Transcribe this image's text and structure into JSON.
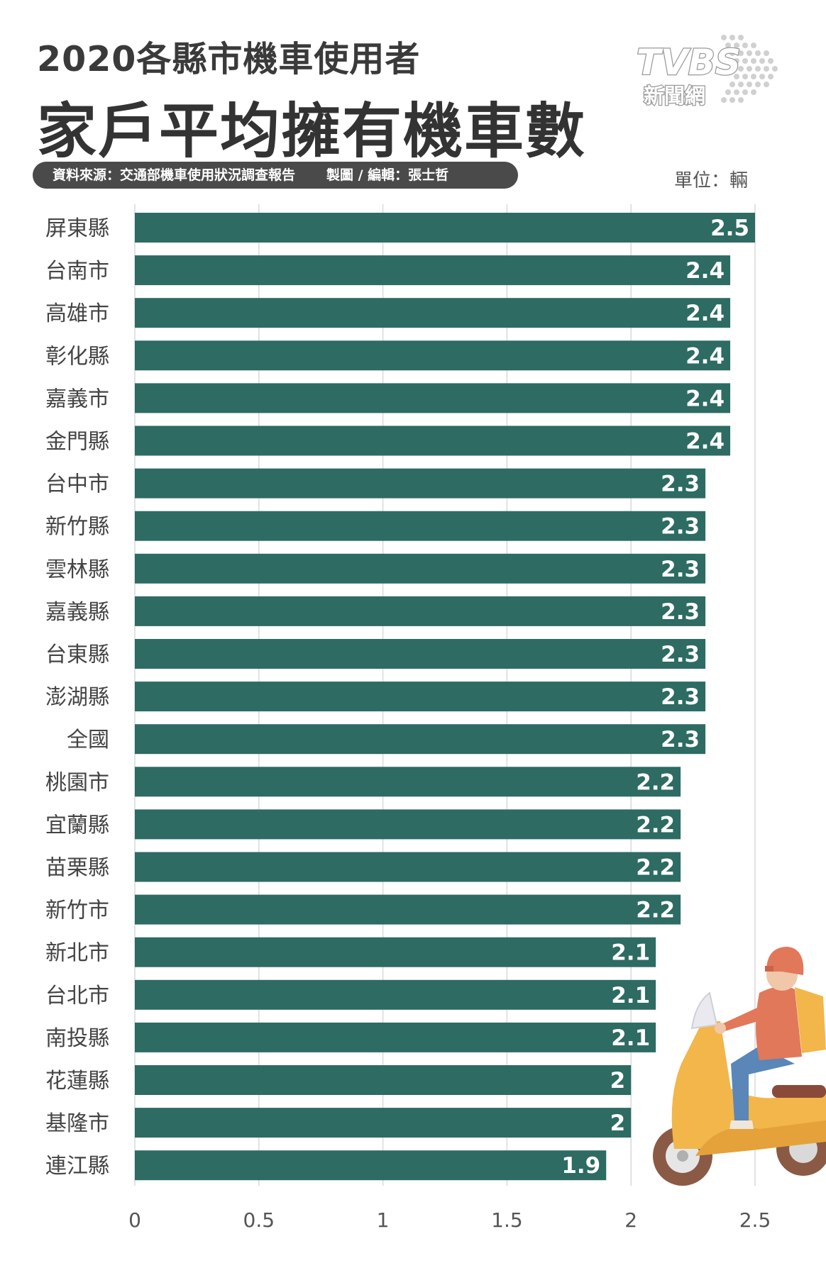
{
  "title_line1": "2020各縣市機車使用者",
  "title_line2": "家戶平均擁有機車數",
  "source": "資料來源：交通部機車使用狀況調查報告",
  "credit": "製圖 / 編輯：張士哲",
  "unit": "單位：輛",
  "logo": {
    "brand": "TVBS",
    "sub": "新聞網"
  },
  "colors": {
    "bar": "#2d6b63",
    "grid": "#d9d9d9",
    "source_bar": "#4a4a4a"
  },
  "chart_data": {
    "type": "bar",
    "orientation": "horizontal",
    "categories": [
      "屏東縣",
      "台南市",
      "高雄市",
      "彰化縣",
      "嘉義市",
      "金門縣",
      "台中市",
      "新竹縣",
      "雲林縣",
      "嘉義縣",
      "台東縣",
      "澎湖縣",
      "全國",
      "桃園市",
      "宜蘭縣",
      "苗栗縣",
      "新竹市",
      "新北市",
      "台北市",
      "南投縣",
      "花蓮縣",
      "基隆市",
      "連江縣"
    ],
    "values": [
      2.5,
      2.4,
      2.4,
      2.4,
      2.4,
      2.4,
      2.3,
      2.3,
      2.3,
      2.3,
      2.3,
      2.3,
      2.3,
      2.2,
      2.2,
      2.2,
      2.2,
      2.1,
      2.1,
      2.1,
      2,
      2,
      1.9
    ],
    "xlim": [
      0,
      2.5
    ],
    "ticks": [
      0,
      0.5,
      1,
      1.5,
      2,
      2.5
    ],
    "tick_labels": [
      "0",
      "0.5",
      "1",
      "1.5",
      "2",
      "2.5"
    ],
    "grid": true,
    "data_labels": true
  }
}
